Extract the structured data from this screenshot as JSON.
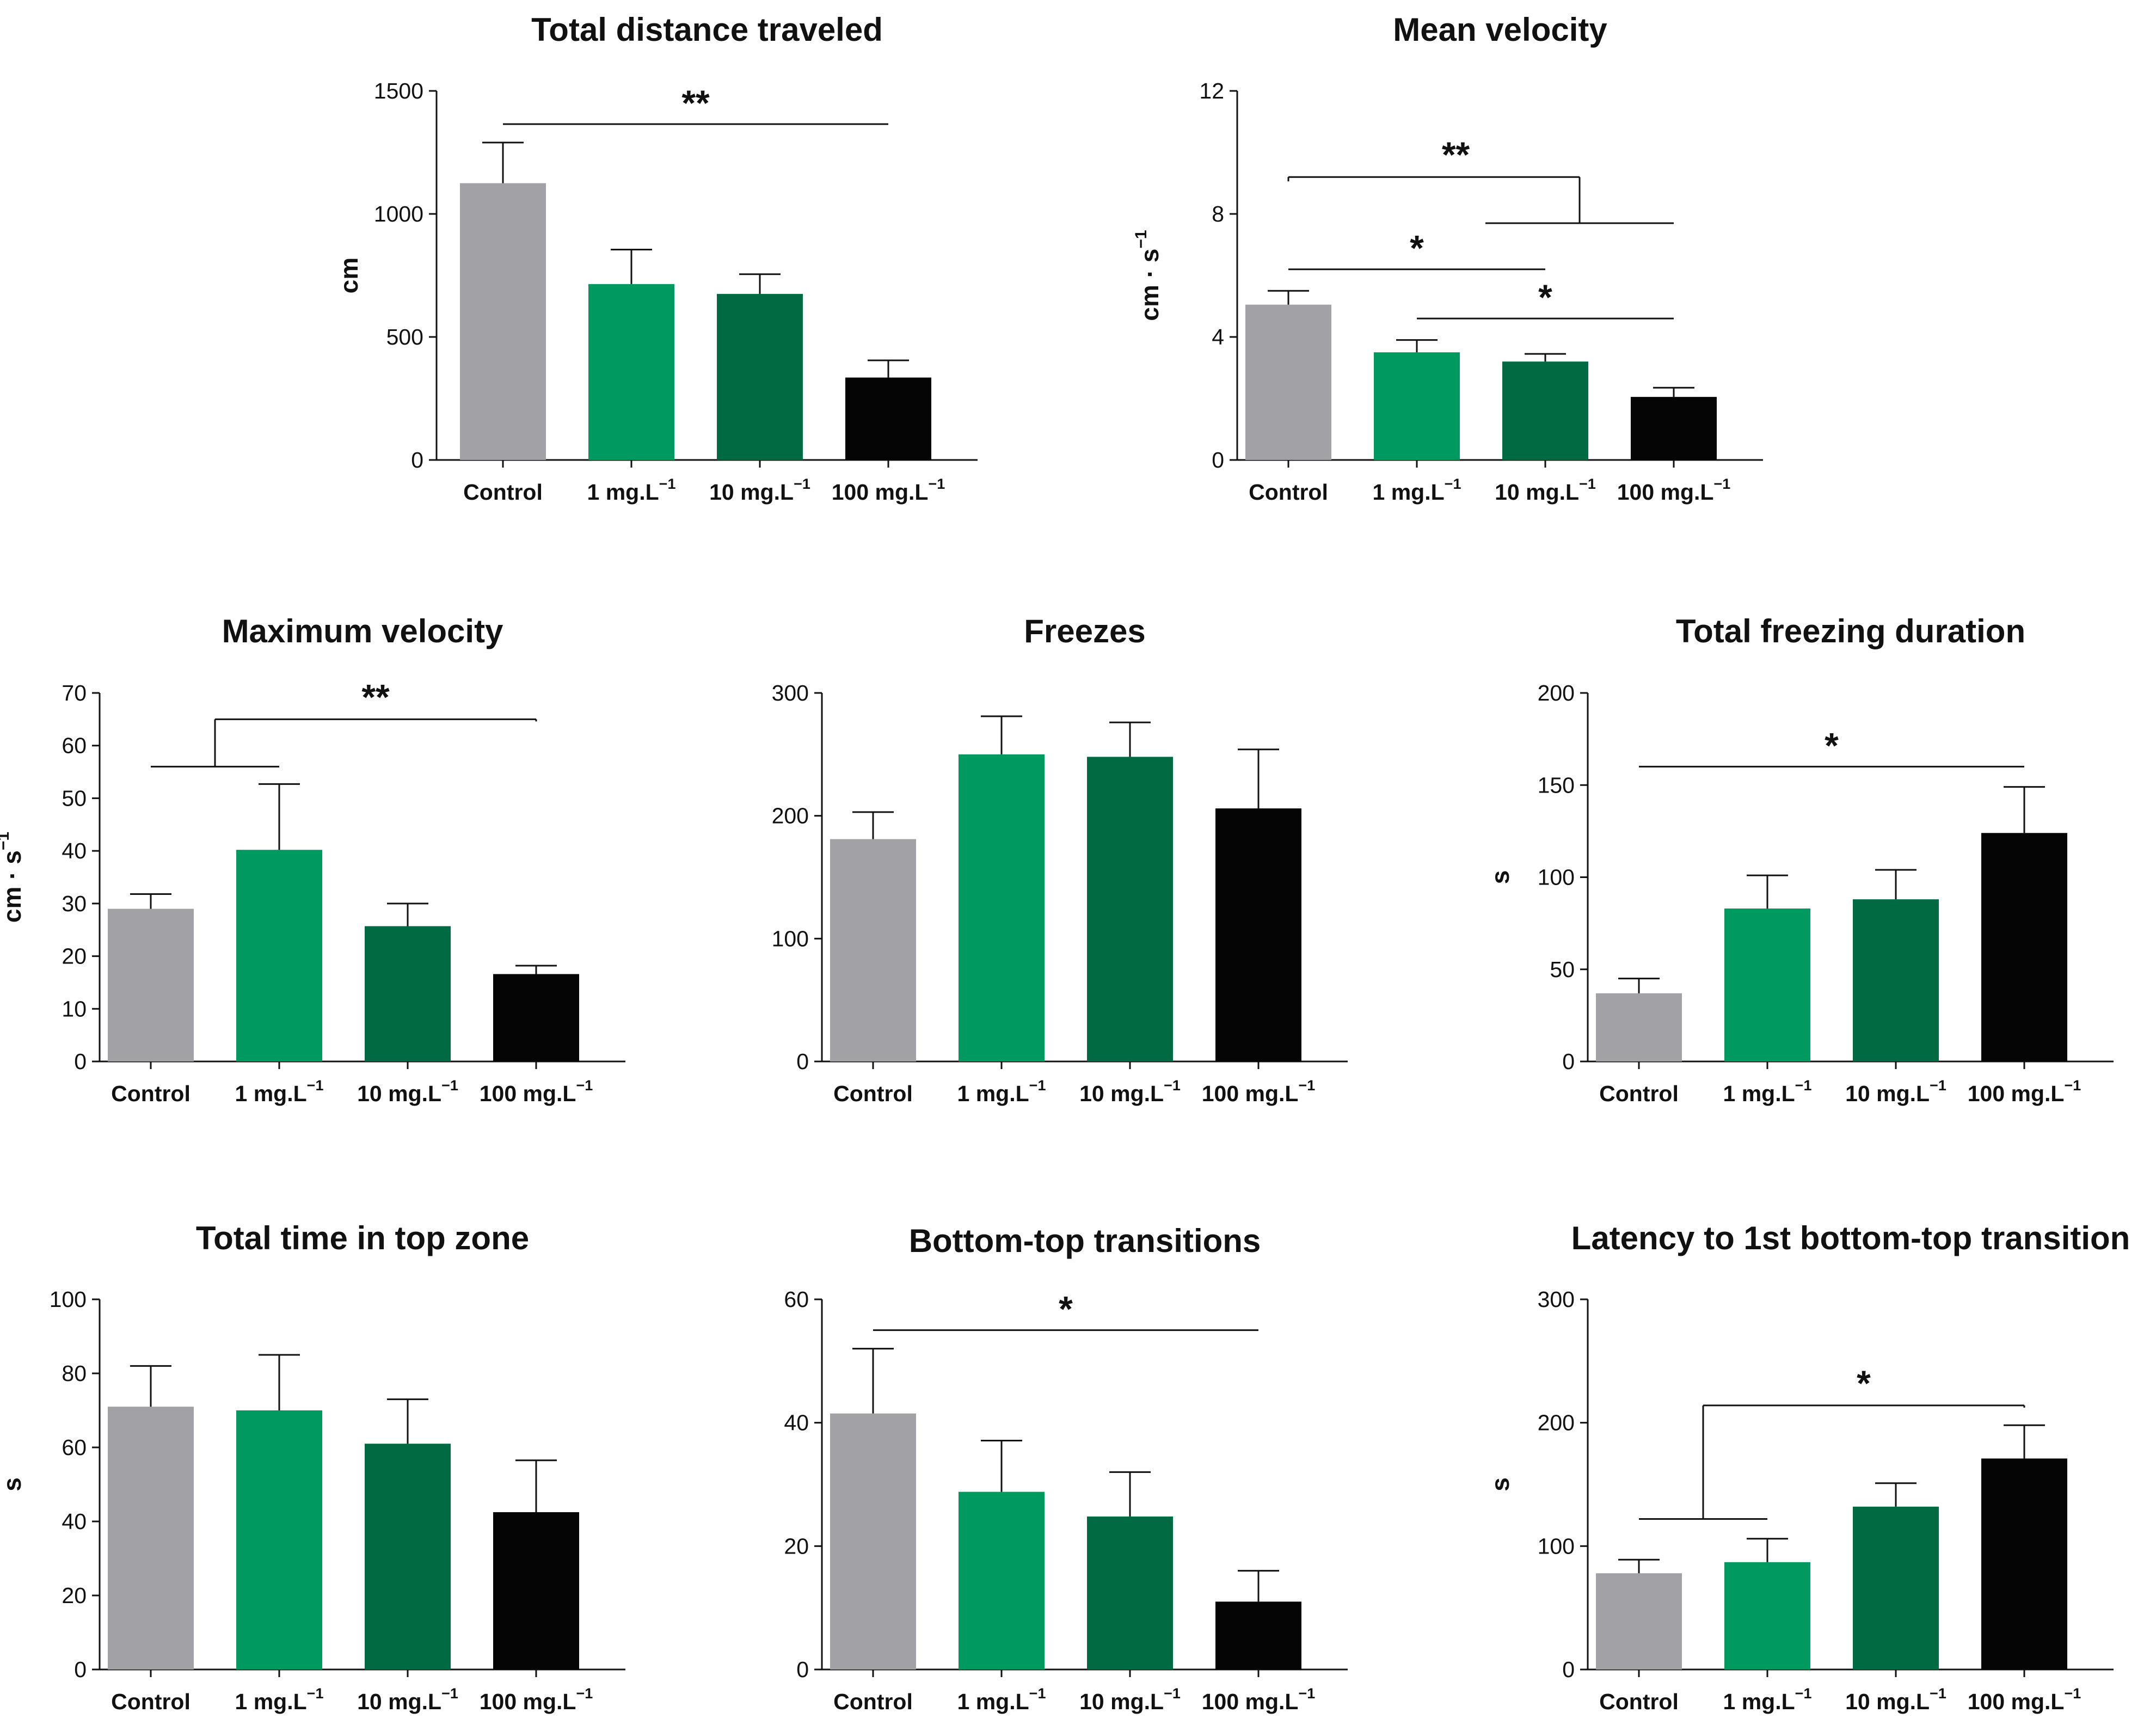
{
  "figure": {
    "colors": {
      "control": "#a2a1a6",
      "low": "#00995f",
      "mid": "#006a42",
      "high": "#050505",
      "axis": "#111111"
    }
  },
  "chart_data": [
    {
      "id": "total-distance",
      "type": "bar",
      "title": "Total distance traveled",
      "categories": [
        {
          "label": "Control",
          "sup": ""
        },
        {
          "label": "1 mg.L",
          "sup": "−1"
        },
        {
          "label": "10 mg.L",
          "sup": "−1"
        },
        {
          "label": "100 mg.L",
          "sup": "−1"
        }
      ],
      "values": [
        1125,
        715,
        675,
        335
      ],
      "errors": [
        165,
        140,
        80,
        70
      ],
      "ylim": [
        0,
        1500
      ],
      "yticks": [
        0,
        500,
        1000,
        1500
      ],
      "ylabel": "cm",
      "ylabel_sup": "",
      "significance": [
        {
          "label": "**",
          "shape": "line",
          "from": 0,
          "to": 3,
          "y": 1365
        }
      ]
    },
    {
      "id": "mean-velocity",
      "type": "bar",
      "title": "Mean velocity",
      "categories": [
        {
          "label": "Control",
          "sup": ""
        },
        {
          "label": "1 mg.L",
          "sup": "−1"
        },
        {
          "label": "10 mg.L",
          "sup": "−1"
        },
        {
          "label": "100 mg.L",
          "sup": "−1"
        }
      ],
      "values": [
        5.05,
        3.5,
        3.2,
        2.05
      ],
      "errors": [
        0.45,
        0.4,
        0.25,
        0.3
      ],
      "ylim": [
        0,
        12
      ],
      "yticks": [
        0,
        4,
        8,
        12
      ],
      "ylabel": "cm · s",
      "ylabel_sup": "−1",
      "significance": [
        {
          "label": "*",
          "shape": "line",
          "from": 0,
          "to": 2,
          "y": 6.2
        },
        {
          "label": "*",
          "shape": "line",
          "from": 1,
          "to": 3,
          "y": 4.6
        },
        {
          "label": "**",
          "shape": "group",
          "groupA": [
            0,
            2.5
          ],
          "groupB": [
            2,
            3
          ],
          "y": 9.2,
          "y2": 7.7
        }
      ]
    },
    {
      "id": "max-velocity",
      "type": "bar",
      "title": "Maximum velocity",
      "categories": [
        {
          "label": "Control",
          "sup": ""
        },
        {
          "label": "1 mg.L",
          "sup": "−1"
        },
        {
          "label": "10 mg.L",
          "sup": "−1"
        },
        {
          "label": "100 mg.L",
          "sup": "−1"
        }
      ],
      "values": [
        29,
        40.2,
        25.7,
        16.6
      ],
      "errors": [
        2.8,
        12.5,
        4.3,
        1.6
      ],
      "ylim": [
        0,
        70
      ],
      "yticks": [
        0,
        10,
        20,
        30,
        40,
        50,
        60,
        70
      ],
      "ylabel": "cm · s",
      "ylabel_sup": "−1",
      "significance": [
        {
          "label": "**",
          "shape": "group",
          "groupA": [
            0,
            1
          ],
          "groupB": [
            3,
            3
          ],
          "y": 56,
          "y2": 65,
          "flip": true
        }
      ]
    },
    {
      "id": "freezes",
      "type": "bar",
      "title": "Freezes",
      "categories": [
        {
          "label": "Control",
          "sup": ""
        },
        {
          "label": "1 mg.L",
          "sup": "−1"
        },
        {
          "label": "10 mg.L",
          "sup": "−1"
        },
        {
          "label": "100 mg.L",
          "sup": "−1"
        }
      ],
      "values": [
        181,
        250,
        248,
        206
      ],
      "errors": [
        22,
        31,
        28,
        48
      ],
      "ylim": [
        0,
        300
      ],
      "yticks": [
        0,
        100,
        200,
        300
      ],
      "ylabel": "",
      "ylabel_sup": "",
      "significance": []
    },
    {
      "id": "freezing-duration",
      "type": "bar",
      "title": "Total freezing duration",
      "categories": [
        {
          "label": "Control",
          "sup": ""
        },
        {
          "label": "1 mg.L",
          "sup": "−1"
        },
        {
          "label": "10 mg.L",
          "sup": "−1"
        },
        {
          "label": "100 mg.L",
          "sup": "−1"
        }
      ],
      "values": [
        37,
        83,
        88,
        124
      ],
      "errors": [
        8,
        18,
        16,
        25
      ],
      "ylim": [
        0,
        200
      ],
      "yticks": [
        0,
        50,
        100,
        150,
        200
      ],
      "ylabel": "s",
      "ylabel_sup": "",
      "significance": [
        {
          "label": "*",
          "shape": "line",
          "from": 0,
          "to": 3,
          "y": 160
        }
      ]
    },
    {
      "id": "time-top-zone",
      "type": "bar",
      "title": "Total time in top zone",
      "categories": [
        {
          "label": "Control",
          "sup": ""
        },
        {
          "label": "1 mg.L",
          "sup": "−1"
        },
        {
          "label": "10 mg.L",
          "sup": "−1"
        },
        {
          "label": "100 mg.L",
          "sup": "−1"
        }
      ],
      "values": [
        71,
        70,
        61,
        42.5
      ],
      "errors": [
        11,
        15,
        12,
        14
      ],
      "ylim": [
        0,
        100
      ],
      "yticks": [
        0,
        20,
        40,
        60,
        80,
        100
      ],
      "ylabel": "s",
      "ylabel_sup": "",
      "significance": []
    },
    {
      "id": "bottom-top-transitions",
      "type": "bar",
      "title": "Bottom-top transitions",
      "categories": [
        {
          "label": "Control",
          "sup": ""
        },
        {
          "label": "1 mg.L",
          "sup": "−1"
        },
        {
          "label": "10 mg.L",
          "sup": "−1"
        },
        {
          "label": "100 mg.L",
          "sup": "−1"
        }
      ],
      "values": [
        41.5,
        28.8,
        24.8,
        11
      ],
      "errors": [
        10.5,
        8.3,
        7.2,
        5
      ],
      "ylim": [
        0,
        60
      ],
      "yticks": [
        0,
        20,
        40,
        60
      ],
      "ylabel": "",
      "ylabel_sup": "",
      "significance": [
        {
          "label": "*",
          "shape": "line",
          "from": 0,
          "to": 3,
          "y": 55
        }
      ]
    },
    {
      "id": "latency-transition",
      "type": "bar",
      "title": "Latency to 1st bottom-top transition",
      "categories": [
        {
          "label": "Control",
          "sup": ""
        },
        {
          "label": "1 mg.L",
          "sup": "−1"
        },
        {
          "label": "10 mg.L",
          "sup": "−1"
        },
        {
          "label": "100 mg.L",
          "sup": "−1"
        }
      ],
      "values": [
        78,
        87,
        132,
        171
      ],
      "errors": [
        11,
        19,
        19,
        27
      ],
      "ylim": [
        0,
        300
      ],
      "yticks": [
        0,
        100,
        200,
        300
      ],
      "ylabel": "s",
      "ylabel_sup": "",
      "significance": [
        {
          "label": "*",
          "shape": "group",
          "groupA": [
            0,
            1
          ],
          "groupB": [
            3,
            3
          ],
          "y": 122,
          "y2": 214,
          "flip": true
        }
      ]
    }
  ]
}
